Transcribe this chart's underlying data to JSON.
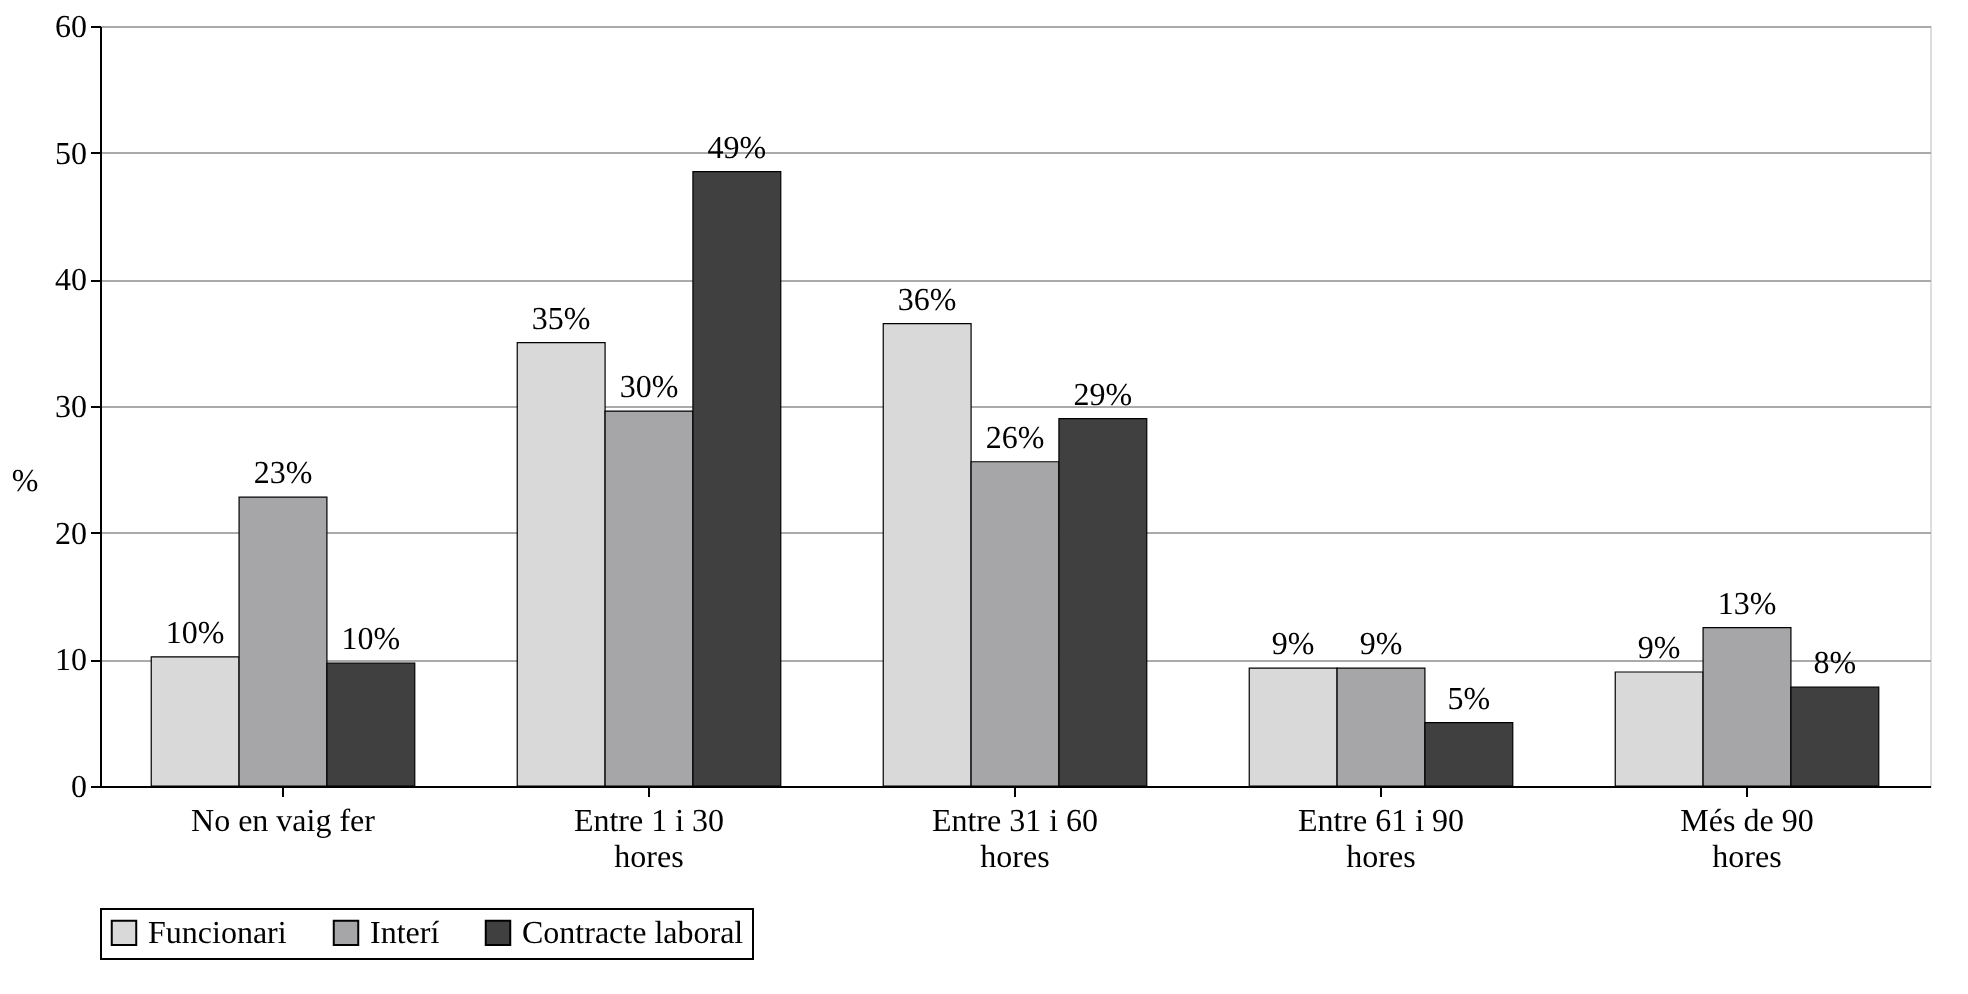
{
  "chart_data": {
    "type": "bar",
    "ylabel": "%",
    "categories": [
      "No en vaig fer",
      "Entre 1 i 30 hores",
      "Entre 31 i 60 hores",
      "Entre 61 i 90 hores",
      "Més de 90 hores"
    ],
    "series": [
      {
        "name": "Funcionari",
        "color": "#d9d9d9",
        "values": [
          10.2,
          35,
          36.5,
          9.3,
          9
        ],
        "value_labels": [
          "10%",
          "35%",
          "36%",
          "9%",
          "9%"
        ]
      },
      {
        "name": "Interí",
        "color": "#a6a6a8",
        "values": [
          22.8,
          29.6,
          25.6,
          9.3,
          12.5
        ],
        "value_labels": [
          "23%",
          "30%",
          "26%",
          "9%",
          "13%"
        ]
      },
      {
        "name": "Contracte laboral",
        "color": "#404040",
        "values": [
          9.7,
          48.5,
          29,
          5,
          7.8
        ],
        "value_labels": [
          "10%",
          "49%",
          "29%",
          "5%",
          "8%"
        ]
      }
    ],
    "ylim": [
      0,
      60
    ],
    "yticks": [
      0,
      10,
      20,
      30,
      40,
      50,
      60
    ],
    "grid": "y",
    "legend": "bottom"
  }
}
